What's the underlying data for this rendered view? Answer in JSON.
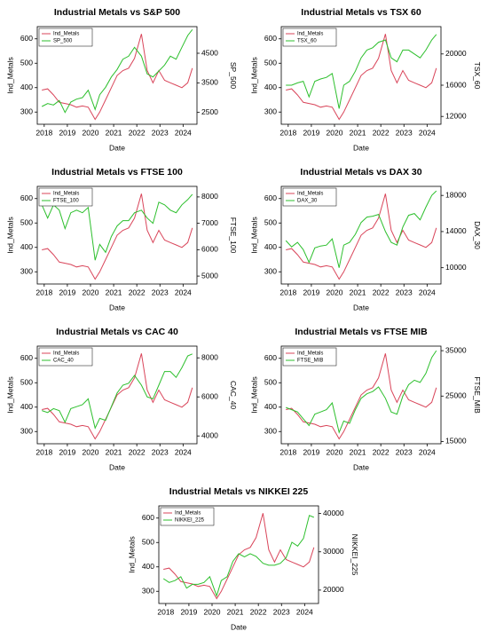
{
  "chart_data": [
    {
      "type": "line",
      "title": "Industrial Metals vs S&P 500",
      "xlabel": "Date",
      "ylabel": "Ind_Metals",
      "y2label": "SP_500",
      "legend": "top-left",
      "x": [
        2017.9,
        2018.15,
        2018.4,
        2018.65,
        2018.9,
        2019.15,
        2019.4,
        2019.65,
        2019.9,
        2020.2,
        2020.4,
        2020.65,
        2020.9,
        2021.15,
        2021.4,
        2021.65,
        2021.9,
        2022.2,
        2022.45,
        2022.7,
        2022.95,
        2023.2,
        2023.45,
        2023.7,
        2023.95,
        2024.2,
        2024.4
      ],
      "xlim": [
        2017.7,
        2024.6
      ],
      "xticks": [
        2018,
        2019,
        2020,
        2021,
        2022,
        2023,
        2024
      ],
      "ylim": [
        250,
        650
      ],
      "yticks": [
        300,
        400,
        500,
        600
      ],
      "y2lim": [
        2100,
        5400
      ],
      "y2ticks": [
        2500,
        3500,
        4500
      ],
      "series": [
        {
          "name": "Ind_Metals",
          "color": "#d9455a",
          "values": [
            390,
            395,
            370,
            340,
            335,
            330,
            320,
            325,
            320,
            270,
            300,
            350,
            400,
            450,
            470,
            480,
            520,
            620,
            470,
            420,
            470,
            430,
            420,
            410,
            400,
            420,
            480
          ]
        },
        {
          "name": "SP_500",
          "color": "#2cbf2c",
          "axis": "y2",
          "values": [
            2700,
            2800,
            2750,
            2900,
            2500,
            2850,
            2950,
            3000,
            3250,
            2600,
            3100,
            3350,
            3700,
            3950,
            4300,
            4400,
            4700,
            4400,
            3800,
            3700,
            3900,
            4100,
            4400,
            4300,
            4700,
            5100,
            5300
          ]
        }
      ]
    },
    {
      "type": "line",
      "title": "Industrial Metals vs TSX 60",
      "xlabel": "Date",
      "ylabel": "Ind_Metals",
      "y2label": "TSX_60",
      "legend": "top-left",
      "x": [
        2017.9,
        2018.15,
        2018.4,
        2018.65,
        2018.9,
        2019.15,
        2019.4,
        2019.65,
        2019.9,
        2020.2,
        2020.4,
        2020.65,
        2020.9,
        2021.15,
        2021.4,
        2021.65,
        2021.9,
        2022.2,
        2022.45,
        2022.7,
        2022.95,
        2023.2,
        2023.45,
        2023.7,
        2023.95,
        2024.2,
        2024.4
      ],
      "xlim": [
        2017.7,
        2024.6
      ],
      "xticks": [
        2018,
        2019,
        2020,
        2021,
        2022,
        2023,
        2024
      ],
      "ylim": [
        250,
        650
      ],
      "yticks": [
        300,
        400,
        500,
        600
      ],
      "y2lim": [
        11000,
        23500
      ],
      "y2ticks": [
        12000,
        16000,
        20000
      ],
      "series": [
        {
          "name": "Ind_Metals",
          "color": "#d9455a",
          "values": [
            390,
            395,
            370,
            340,
            335,
            330,
            320,
            325,
            320,
            270,
            300,
            350,
            400,
            450,
            470,
            480,
            520,
            620,
            470,
            420,
            470,
            430,
            420,
            410,
            400,
            420,
            480
          ]
        },
        {
          "name": "TSX_60",
          "color": "#2cbf2c",
          "axis": "y2",
          "values": [
            16000,
            16000,
            16300,
            16500,
            14500,
            16500,
            16800,
            17000,
            17500,
            13000,
            16000,
            16500,
            17800,
            19500,
            20500,
            20800,
            21500,
            21800,
            19500,
            19000,
            20500,
            20500,
            20000,
            19500,
            20500,
            21800,
            22500
          ]
        }
      ]
    },
    {
      "type": "line",
      "title": "Industrial Metals vs FTSE 100",
      "xlabel": "Date",
      "ylabel": "Ind_Metals",
      "y2label": "FTSE_100",
      "legend": "top-left",
      "x": [
        2017.9,
        2018.15,
        2018.4,
        2018.65,
        2018.9,
        2019.15,
        2019.4,
        2019.65,
        2019.9,
        2020.2,
        2020.4,
        2020.65,
        2020.9,
        2021.15,
        2021.4,
        2021.65,
        2021.9,
        2022.2,
        2022.45,
        2022.7,
        2022.95,
        2023.2,
        2023.45,
        2023.7,
        2023.95,
        2024.2,
        2024.4
      ],
      "xlim": [
        2017.7,
        2024.6
      ],
      "xticks": [
        2018,
        2019,
        2020,
        2021,
        2022,
        2023,
        2024
      ],
      "ylim": [
        250,
        650
      ],
      "yticks": [
        300,
        400,
        500,
        600
      ],
      "y2lim": [
        4700,
        8400
      ],
      "y2ticks": [
        5000,
        6000,
        7000,
        8000
      ],
      "series": [
        {
          "name": "Ind_Metals",
          "color": "#d9455a",
          "values": [
            390,
            395,
            370,
            340,
            335,
            330,
            320,
            325,
            320,
            270,
            300,
            350,
            400,
            450,
            470,
            480,
            520,
            620,
            470,
            420,
            470,
            430,
            420,
            410,
            400,
            420,
            480
          ]
        },
        {
          "name": "FTSE_100",
          "color": "#2cbf2c",
          "axis": "y2",
          "values": [
            7700,
            7200,
            7700,
            7500,
            6800,
            7400,
            7500,
            7400,
            7600,
            5600,
            6200,
            5900,
            6500,
            6900,
            7100,
            7100,
            7400,
            7500,
            7200,
            7000,
            7800,
            7700,
            7500,
            7400,
            7700,
            7900,
            8100
          ]
        }
      ]
    },
    {
      "type": "line",
      "title": "Industrial Metals vs DAX 30",
      "xlabel": "Date",
      "ylabel": "Ind_Metals",
      "y2label": "DAX_30",
      "legend": "top-left",
      "x": [
        2017.9,
        2018.15,
        2018.4,
        2018.65,
        2018.9,
        2019.15,
        2019.4,
        2019.65,
        2019.9,
        2020.2,
        2020.4,
        2020.65,
        2020.9,
        2021.15,
        2021.4,
        2021.65,
        2021.9,
        2022.2,
        2022.45,
        2022.7,
        2022.95,
        2023.2,
        2023.45,
        2023.7,
        2023.95,
        2024.2,
        2024.4
      ],
      "xlim": [
        2017.7,
        2024.6
      ],
      "xticks": [
        2018,
        2019,
        2020,
        2021,
        2022,
        2023,
        2024
      ],
      "ylim": [
        250,
        650
      ],
      "yticks": [
        300,
        400,
        500,
        600
      ],
      "y2lim": [
        8200,
        19000
      ],
      "y2ticks": [
        10000,
        14000,
        18000
      ],
      "series": [
        {
          "name": "Ind_Metals",
          "color": "#d9455a",
          "values": [
            390,
            395,
            370,
            340,
            335,
            330,
            320,
            325,
            320,
            270,
            300,
            350,
            400,
            450,
            470,
            480,
            520,
            620,
            470,
            420,
            470,
            430,
            420,
            410,
            400,
            420,
            480
          ]
        },
        {
          "name": "DAX_30",
          "color": "#2cbf2c",
          "axis": "y2",
          "values": [
            13000,
            12300,
            12800,
            12000,
            10600,
            12200,
            12400,
            12500,
            13200,
            10000,
            12500,
            12800,
            13700,
            15000,
            15600,
            15700,
            15900,
            14000,
            12800,
            12500,
            14500,
            15800,
            16000,
            15300,
            16700,
            18000,
            18500
          ]
        }
      ]
    },
    {
      "type": "line",
      "title": "Industrial Metals vs CAC 40",
      "xlabel": "Date",
      "ylabel": "Ind_Metals",
      "y2label": "CAC_40",
      "legend": "top-left",
      "x": [
        2017.9,
        2018.15,
        2018.4,
        2018.65,
        2018.9,
        2019.15,
        2019.4,
        2019.65,
        2019.9,
        2020.2,
        2020.4,
        2020.65,
        2020.9,
        2021.15,
        2021.4,
        2021.65,
        2021.9,
        2022.2,
        2022.45,
        2022.7,
        2022.95,
        2023.2,
        2023.45,
        2023.7,
        2023.95,
        2024.2,
        2024.4
      ],
      "xlim": [
        2017.7,
        2024.6
      ],
      "xticks": [
        2018,
        2019,
        2020,
        2021,
        2022,
        2023,
        2024
      ],
      "ylim": [
        250,
        650
      ],
      "yticks": [
        300,
        400,
        500,
        600
      ],
      "y2lim": [
        3600,
        8600
      ],
      "y2ticks": [
        4000,
        6000,
        8000
      ],
      "series": [
        {
          "name": "Ind_Metals",
          "color": "#d9455a",
          "values": [
            390,
            395,
            370,
            340,
            335,
            330,
            320,
            325,
            320,
            270,
            300,
            350,
            400,
            450,
            470,
            480,
            520,
            620,
            470,
            420,
            470,
            430,
            420,
            410,
            400,
            420,
            480
          ]
        },
        {
          "name": "CAC_40",
          "color": "#2cbf2c",
          "axis": "y2",
          "values": [
            5300,
            5200,
            5400,
            5300,
            4700,
            5400,
            5500,
            5600,
            5900,
            4400,
            4900,
            4800,
            5500,
            6200,
            6600,
            6700,
            7100,
            6600,
            6000,
            5900,
            6600,
            7300,
            7300,
            7000,
            7500,
            8100,
            8200
          ]
        }
      ]
    },
    {
      "type": "line",
      "title": "Industrial Metals vs FTSE MIB",
      "xlabel": "Date",
      "ylabel": "Ind_Metals",
      "y2label": "FTSE_MIB",
      "legend": "top-left",
      "x": [
        2017.9,
        2018.15,
        2018.4,
        2018.65,
        2018.9,
        2019.15,
        2019.4,
        2019.65,
        2019.9,
        2020.2,
        2020.4,
        2020.65,
        2020.9,
        2021.15,
        2021.4,
        2021.65,
        2021.9,
        2022.2,
        2022.45,
        2022.7,
        2022.95,
        2023.2,
        2023.45,
        2023.7,
        2023.95,
        2024.2,
        2024.4
      ],
      "xlim": [
        2017.7,
        2024.6
      ],
      "xticks": [
        2018,
        2019,
        2020,
        2021,
        2022,
        2023,
        2024
      ],
      "ylim": [
        250,
        650
      ],
      "yticks": [
        300,
        400,
        500,
        600
      ],
      "y2lim": [
        14500,
        36000
      ],
      "y2ticks": [
        15000,
        25000,
        35000
      ],
      "series": [
        {
          "name": "Ind_Metals",
          "color": "#d9455a",
          "values": [
            390,
            395,
            370,
            340,
            335,
            330,
            320,
            325,
            320,
            270,
            300,
            350,
            400,
            450,
            470,
            480,
            520,
            620,
            470,
            420,
            470,
            430,
            420,
            410,
            400,
            420,
            480
          ]
        },
        {
          "name": "FTSE_MIB",
          "color": "#2cbf2c",
          "axis": "y2",
          "values": [
            22500,
            22000,
            21500,
            20000,
            18500,
            21000,
            21500,
            22000,
            23500,
            17000,
            19500,
            19000,
            22000,
            24500,
            25500,
            26000,
            27000,
            24500,
            21500,
            21000,
            25000,
            27500,
            28500,
            28000,
            30000,
            33500,
            35000
          ]
        }
      ]
    },
    {
      "type": "line",
      "title": "Industrial Metals vs NIKKEI 225",
      "xlabel": "Date",
      "ylabel": "Ind_Metals",
      "y2label": "NIKKEI_225",
      "legend": "top-left",
      "x": [
        2017.9,
        2018.15,
        2018.4,
        2018.65,
        2018.9,
        2019.15,
        2019.4,
        2019.65,
        2019.9,
        2020.2,
        2020.4,
        2020.65,
        2020.9,
        2021.15,
        2021.4,
        2021.65,
        2021.9,
        2022.2,
        2022.45,
        2022.7,
        2022.95,
        2023.2,
        2023.45,
        2023.7,
        2023.95,
        2024.2,
        2024.4
      ],
      "xlim": [
        2017.7,
        2024.6
      ],
      "xticks": [
        2018,
        2019,
        2020,
        2021,
        2022,
        2023,
        2024
      ],
      "ylim": [
        250,
        650
      ],
      "yticks": [
        300,
        400,
        500,
        600
      ],
      "y2lim": [
        16500,
        42000
      ],
      "y2ticks": [
        20000,
        30000,
        40000
      ],
      "series": [
        {
          "name": "Ind_Metals",
          "color": "#d9455a",
          "values": [
            390,
            395,
            370,
            340,
            335,
            330,
            320,
            325,
            320,
            270,
            300,
            350,
            400,
            450,
            470,
            480,
            520,
            620,
            470,
            420,
            470,
            430,
            420,
            410,
            400,
            420,
            480
          ]
        },
        {
          "name": "NIKKEI_225",
          "color": "#2cbf2c",
          "axis": "y2",
          "values": [
            23000,
            22000,
            22500,
            23500,
            20500,
            21500,
            21500,
            22000,
            23500,
            18500,
            22500,
            23500,
            27500,
            29500,
            28700,
            29500,
            28800,
            27000,
            26500,
            26500,
            27000,
            28500,
            32500,
            31500,
            33500,
            39500,
            39000
          ]
        }
      ]
    }
  ]
}
